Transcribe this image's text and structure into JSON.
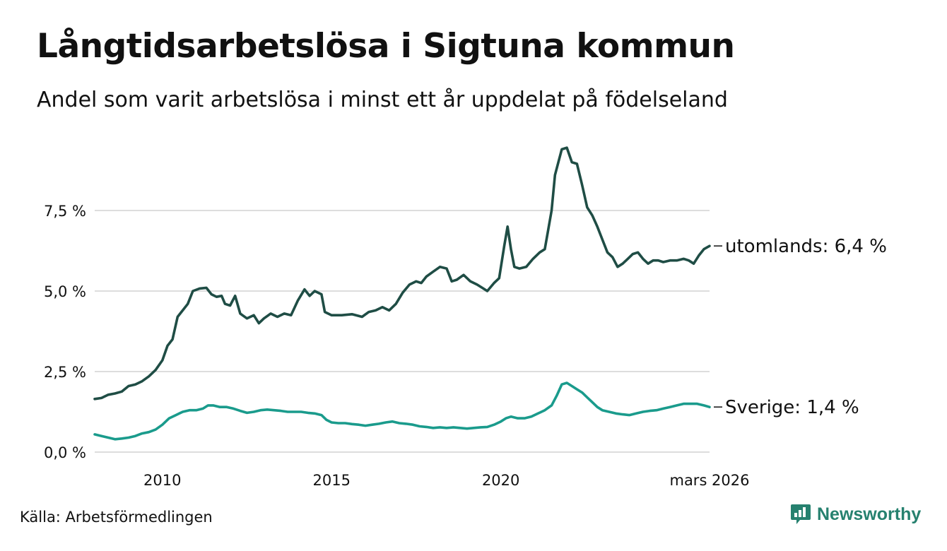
{
  "chart_data": {
    "type": "line",
    "title": "Långtidsarbetslösa i Sigtuna kommun",
    "subtitle": "Andel som varit arbetslösa i minst ett år uppdelat på födelseland",
    "source": "Källa: Arbetsförmedlingen",
    "brand": "Newsworthy",
    "ylim": [
      0,
      10
    ],
    "xlim": [
      2008.0,
      2026.167
    ],
    "y_ticks": [
      {
        "value": 0,
        "label": "0,0 %"
      },
      {
        "value": 2.5,
        "label": "2,5 %"
      },
      {
        "value": 5,
        "label": "5,0 %"
      },
      {
        "value": 7.5,
        "label": "7,5 %"
      }
    ],
    "x_ticks": [
      {
        "value": 2010,
        "label": "2010"
      },
      {
        "value": 2015,
        "label": "2015"
      },
      {
        "value": 2020,
        "label": "2020"
      },
      {
        "value": 2026.167,
        "label": "mars 2026"
      }
    ],
    "colors": {
      "utomlands": "#1f4d45",
      "sverige": "#1a9b8c",
      "grid": "#dddddd",
      "brand": "#26816f"
    },
    "series": [
      {
        "name": "utomlands",
        "end_label": "utomlands: 6,4 %",
        "points": [
          [
            2008.0,
            1.65
          ],
          [
            2008.2,
            1.68
          ],
          [
            2008.4,
            1.78
          ],
          [
            2008.6,
            1.82
          ],
          [
            2008.8,
            1.88
          ],
          [
            2009.0,
            2.05
          ],
          [
            2009.2,
            2.1
          ],
          [
            2009.4,
            2.2
          ],
          [
            2009.6,
            2.35
          ],
          [
            2009.8,
            2.55
          ],
          [
            2010.0,
            2.85
          ],
          [
            2010.15,
            3.3
          ],
          [
            2010.3,
            3.5
          ],
          [
            2010.45,
            4.2
          ],
          [
            2010.6,
            4.4
          ],
          [
            2010.75,
            4.6
          ],
          [
            2010.9,
            5.0
          ],
          [
            2011.1,
            5.08
          ],
          [
            2011.3,
            5.1
          ],
          [
            2011.45,
            4.9
          ],
          [
            2011.6,
            4.82
          ],
          [
            2011.75,
            4.85
          ],
          [
            2011.85,
            4.6
          ],
          [
            2012.0,
            4.55
          ],
          [
            2012.15,
            4.85
          ],
          [
            2012.3,
            4.3
          ],
          [
            2012.5,
            4.15
          ],
          [
            2012.7,
            4.25
          ],
          [
            2012.85,
            4.0
          ],
          [
            2013.0,
            4.15
          ],
          [
            2013.2,
            4.3
          ],
          [
            2013.4,
            4.2
          ],
          [
            2013.6,
            4.3
          ],
          [
            2013.8,
            4.25
          ],
          [
            2014.0,
            4.7
          ],
          [
            2014.2,
            5.05
          ],
          [
            2014.35,
            4.85
          ],
          [
            2014.5,
            5.0
          ],
          [
            2014.7,
            4.9
          ],
          [
            2014.8,
            4.35
          ],
          [
            2015.0,
            4.25
          ],
          [
            2015.3,
            4.25
          ],
          [
            2015.6,
            4.28
          ],
          [
            2015.9,
            4.2
          ],
          [
            2016.1,
            4.35
          ],
          [
            2016.3,
            4.4
          ],
          [
            2016.5,
            4.5
          ],
          [
            2016.7,
            4.4
          ],
          [
            2016.9,
            4.6
          ],
          [
            2017.1,
            4.95
          ],
          [
            2017.3,
            5.2
          ],
          [
            2017.5,
            5.3
          ],
          [
            2017.65,
            5.25
          ],
          [
            2017.8,
            5.45
          ],
          [
            2018.0,
            5.6
          ],
          [
            2018.2,
            5.75
          ],
          [
            2018.4,
            5.7
          ],
          [
            2018.55,
            5.3
          ],
          [
            2018.7,
            5.35
          ],
          [
            2018.9,
            5.5
          ],
          [
            2019.1,
            5.3
          ],
          [
            2019.3,
            5.2
          ],
          [
            2019.45,
            5.1
          ],
          [
            2019.6,
            5.0
          ],
          [
            2019.8,
            5.25
          ],
          [
            2019.95,
            5.4
          ],
          [
            2020.1,
            6.4
          ],
          [
            2020.2,
            7.0
          ],
          [
            2020.3,
            6.3
          ],
          [
            2020.4,
            5.75
          ],
          [
            2020.55,
            5.7
          ],
          [
            2020.75,
            5.75
          ],
          [
            2020.95,
            6.0
          ],
          [
            2021.15,
            6.2
          ],
          [
            2021.3,
            6.3
          ],
          [
            2021.4,
            6.9
          ],
          [
            2021.5,
            7.5
          ],
          [
            2021.6,
            8.6
          ],
          [
            2021.7,
            9.0
          ],
          [
            2021.8,
            9.4
          ],
          [
            2021.95,
            9.45
          ],
          [
            2022.1,
            9.0
          ],
          [
            2022.25,
            8.95
          ],
          [
            2022.4,
            8.3
          ],
          [
            2022.55,
            7.6
          ],
          [
            2022.7,
            7.35
          ],
          [
            2022.85,
            7.0
          ],
          [
            2023.0,
            6.6
          ],
          [
            2023.15,
            6.2
          ],
          [
            2023.3,
            6.05
          ],
          [
            2023.45,
            5.75
          ],
          [
            2023.6,
            5.85
          ],
          [
            2023.75,
            6.0
          ],
          [
            2023.9,
            6.15
          ],
          [
            2024.05,
            6.2
          ],
          [
            2024.2,
            6.0
          ],
          [
            2024.35,
            5.85
          ],
          [
            2024.5,
            5.95
          ],
          [
            2024.65,
            5.95
          ],
          [
            2024.8,
            5.9
          ],
          [
            2025.0,
            5.95
          ],
          [
            2025.2,
            5.95
          ],
          [
            2025.4,
            6.0
          ],
          [
            2025.55,
            5.95
          ],
          [
            2025.7,
            5.85
          ],
          [
            2025.85,
            6.1
          ],
          [
            2026.0,
            6.3
          ],
          [
            2026.167,
            6.4
          ]
        ]
      },
      {
        "name": "sverige",
        "end_label": "Sverige: 1,4 %",
        "points": [
          [
            2008.0,
            0.55
          ],
          [
            2008.2,
            0.5
          ],
          [
            2008.4,
            0.45
          ],
          [
            2008.6,
            0.4
          ],
          [
            2008.8,
            0.42
          ],
          [
            2009.0,
            0.45
          ],
          [
            2009.2,
            0.5
          ],
          [
            2009.4,
            0.58
          ],
          [
            2009.6,
            0.62
          ],
          [
            2009.8,
            0.7
          ],
          [
            2010.0,
            0.85
          ],
          [
            2010.2,
            1.05
          ],
          [
            2010.4,
            1.15
          ],
          [
            2010.6,
            1.25
          ],
          [
            2010.8,
            1.3
          ],
          [
            2011.0,
            1.3
          ],
          [
            2011.2,
            1.35
          ],
          [
            2011.35,
            1.45
          ],
          [
            2011.5,
            1.45
          ],
          [
            2011.7,
            1.4
          ],
          [
            2011.9,
            1.4
          ],
          [
            2012.1,
            1.35
          ],
          [
            2012.3,
            1.28
          ],
          [
            2012.5,
            1.22
          ],
          [
            2012.7,
            1.25
          ],
          [
            2012.9,
            1.3
          ],
          [
            2013.1,
            1.32
          ],
          [
            2013.3,
            1.3
          ],
          [
            2013.5,
            1.28
          ],
          [
            2013.7,
            1.25
          ],
          [
            2013.9,
            1.25
          ],
          [
            2014.1,
            1.25
          ],
          [
            2014.3,
            1.22
          ],
          [
            2014.5,
            1.2
          ],
          [
            2014.7,
            1.15
          ],
          [
            2014.85,
            1.0
          ],
          [
            2015.0,
            0.92
          ],
          [
            2015.2,
            0.9
          ],
          [
            2015.4,
            0.9
          ],
          [
            2015.6,
            0.87
          ],
          [
            2015.8,
            0.85
          ],
          [
            2016.0,
            0.82
          ],
          [
            2016.2,
            0.85
          ],
          [
            2016.4,
            0.88
          ],
          [
            2016.6,
            0.92
          ],
          [
            2016.8,
            0.95
          ],
          [
            2017.0,
            0.9
          ],
          [
            2017.2,
            0.88
          ],
          [
            2017.4,
            0.85
          ],
          [
            2017.6,
            0.8
          ],
          [
            2017.8,
            0.78
          ],
          [
            2018.0,
            0.75
          ],
          [
            2018.2,
            0.77
          ],
          [
            2018.4,
            0.75
          ],
          [
            2018.6,
            0.77
          ],
          [
            2018.8,
            0.75
          ],
          [
            2019.0,
            0.73
          ],
          [
            2019.2,
            0.75
          ],
          [
            2019.4,
            0.77
          ],
          [
            2019.6,
            0.78
          ],
          [
            2019.8,
            0.85
          ],
          [
            2020.0,
            0.95
          ],
          [
            2020.15,
            1.05
          ],
          [
            2020.3,
            1.1
          ],
          [
            2020.5,
            1.05
          ],
          [
            2020.7,
            1.05
          ],
          [
            2020.9,
            1.1
          ],
          [
            2021.1,
            1.2
          ],
          [
            2021.3,
            1.3
          ],
          [
            2021.5,
            1.45
          ],
          [
            2021.65,
            1.75
          ],
          [
            2021.8,
            2.1
          ],
          [
            2021.95,
            2.15
          ],
          [
            2022.1,
            2.05
          ],
          [
            2022.25,
            1.95
          ],
          [
            2022.4,
            1.85
          ],
          [
            2022.55,
            1.7
          ],
          [
            2022.7,
            1.55
          ],
          [
            2022.85,
            1.4
          ],
          [
            2023.0,
            1.3
          ],
          [
            2023.2,
            1.25
          ],
          [
            2023.4,
            1.2
          ],
          [
            2023.6,
            1.17
          ],
          [
            2023.8,
            1.15
          ],
          [
            2024.0,
            1.2
          ],
          [
            2024.2,
            1.25
          ],
          [
            2024.4,
            1.28
          ],
          [
            2024.6,
            1.3
          ],
          [
            2024.8,
            1.35
          ],
          [
            2025.0,
            1.4
          ],
          [
            2025.2,
            1.45
          ],
          [
            2025.4,
            1.5
          ],
          [
            2025.6,
            1.5
          ],
          [
            2025.8,
            1.5
          ],
          [
            2026.0,
            1.45
          ],
          [
            2026.167,
            1.4
          ]
        ]
      }
    ]
  }
}
